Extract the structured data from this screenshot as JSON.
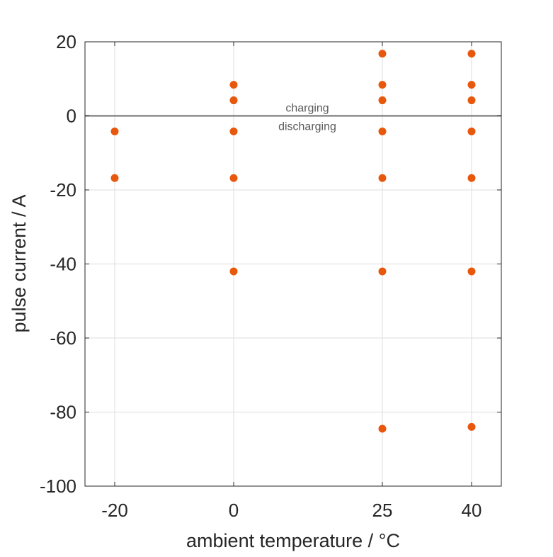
{
  "chart_data": {
    "type": "scatter",
    "title": "",
    "xlabel": "ambient temperature / °C",
    "ylabel": "pulse current / A",
    "xlim": [
      -25,
      45
    ],
    "ylim": [
      -100,
      20
    ],
    "xticks": [
      -20,
      0,
      25,
      40
    ],
    "yticks": [
      20,
      0,
      -20,
      -40,
      -60,
      -80,
      -100
    ],
    "grid": true,
    "zero_line": 0,
    "annotations": {
      "above": "charging",
      "below": "discharging"
    },
    "marker_color": "#e8580c",
    "zero_line_color": "#6e6e6e",
    "points": [
      {
        "x": -20,
        "y": -4.2
      },
      {
        "x": -20,
        "y": -16.8
      },
      {
        "x": 0,
        "y": 8.4
      },
      {
        "x": 0,
        "y": 4.2
      },
      {
        "x": 0,
        "y": -4.2
      },
      {
        "x": 0,
        "y": -16.8
      },
      {
        "x": 0,
        "y": -42
      },
      {
        "x": 25,
        "y": 16.8
      },
      {
        "x": 25,
        "y": 8.4
      },
      {
        "x": 25,
        "y": 4.2
      },
      {
        "x": 25,
        "y": -4.2
      },
      {
        "x": 25,
        "y": -16.8
      },
      {
        "x": 25,
        "y": -42
      },
      {
        "x": 25,
        "y": -84.5
      },
      {
        "x": 40,
        "y": 16.8
      },
      {
        "x": 40,
        "y": 8.4
      },
      {
        "x": 40,
        "y": 4.2
      },
      {
        "x": 40,
        "y": -4.2
      },
      {
        "x": 40,
        "y": -16.8
      },
      {
        "x": 40,
        "y": -42
      },
      {
        "x": 40,
        "y": -84
      }
    ]
  }
}
